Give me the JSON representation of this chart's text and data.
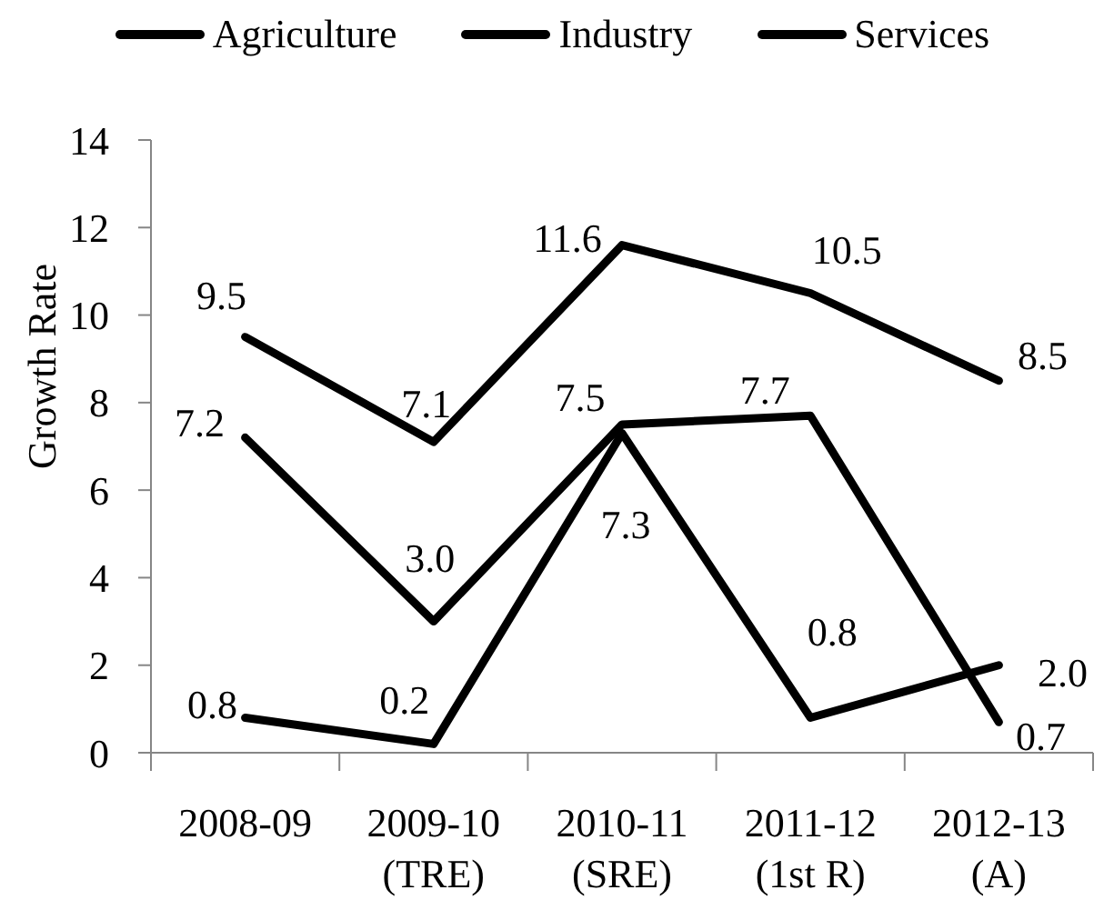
{
  "chart_data": {
    "type": "line",
    "categories": [
      "2008-09",
      "2009-10 (TRE)",
      "2010-11 (SRE)",
      "2011-12 (1st R)",
      "2012-13 (A)"
    ],
    "ylabel": "Growth Rate",
    "ylim": [
      0,
      14
    ],
    "yticks": [
      0,
      2,
      4,
      6,
      8,
      10,
      12,
      14
    ],
    "legend": "top",
    "marker": "none",
    "line_style": "solid",
    "series": [
      {
        "name": "Agriculture",
        "color": "#000000",
        "values": [
          0.8,
          0.2,
          7.3,
          0.8,
          2.0
        ],
        "value_labels": [
          "0.8",
          "0.2",
          "7.3",
          "0.8",
          "2.0"
        ]
      },
      {
        "name": "Industry",
        "color": "#000000",
        "values": [
          7.2,
          3.0,
          7.5,
          7.7,
          0.7
        ],
        "value_labels": [
          "7.2",
          "3.0",
          "7.5",
          "7.7",
          "0.7"
        ]
      },
      {
        "name": "Services",
        "color": "#000000",
        "values": [
          9.5,
          7.1,
          11.6,
          10.5,
          8.5
        ],
        "value_labels": [
          "9.5",
          "7.1",
          "11.6",
          "10.5",
          "8.5"
        ]
      }
    ]
  }
}
